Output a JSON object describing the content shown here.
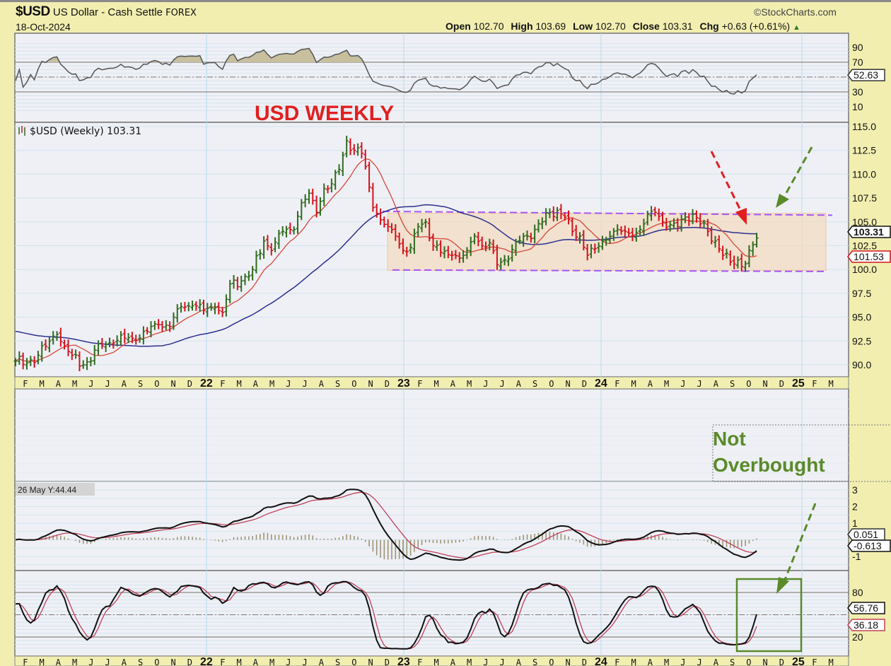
{
  "header": {
    "symbol": "$USD",
    "name": "US Dollar - Cash Settle",
    "exchange": "FOREX",
    "date": "18-Oct-2024",
    "brand": "©StockCharts.com",
    "open_label": "Open",
    "open": "102.70",
    "high_label": "High",
    "high": "103.69",
    "low_label": "Low",
    "low": "102.70",
    "close_label": "Close",
    "close": "103.31",
    "chg_label": "Chg",
    "chg": "+0.63 (+0.61%)",
    "up_icon": "triangle-up-icon"
  },
  "annotations": {
    "title": "USD WEEKLY",
    "not_overbought_1": "Not",
    "not_overbought_2": "Overbought",
    "cursor_readout": "26 May Y:44.44"
  },
  "colors": {
    "up_bar": "#2f6b1f",
    "down_bar": "#d4121e",
    "ma_short": "#d9463a",
    "ma_long": "#2d2f8f",
    "range_box": "#f2dcc0",
    "range_line": "#a855f7",
    "green_annot": "#5a8a2a",
    "red_annot": "#e02020"
  },
  "chart_data": [
    {
      "type": "line",
      "title": "RSI",
      "yticks": [
        "90",
        "70",
        "50",
        "30",
        "10"
      ],
      "ylim": [
        0,
        100
      ],
      "last_value": "52.63"
    },
    {
      "type": "bar",
      "subtype": "ohlc",
      "title": "$USD (Weekly) 103.31",
      "frequency": "weekly",
      "ylim": [
        89,
        115.5
      ],
      "yticks": [
        "115.0",
        "112.5",
        "110.0",
        "107.5",
        "105.0",
        "102.5",
        "100.0",
        "97.5",
        "95.0",
        "92.5",
        "90.0"
      ],
      "close_keypoints": {
        "week": [
          0,
          3,
          6,
          9,
          11,
          13,
          15,
          18,
          20,
          22,
          26,
          29,
          32,
          35,
          38,
          41,
          44,
          47,
          50,
          53,
          55,
          57,
          60,
          63,
          66,
          68,
          71,
          74,
          76,
          78,
          80,
          82,
          84,
          86,
          88,
          90,
          92,
          93,
          95,
          97,
          99,
          101,
          103,
          105,
          107,
          109,
          111,
          113,
          116,
          118,
          120,
          122,
          124,
          126,
          128,
          130,
          132,
          134,
          136,
          138,
          140,
          142,
          144,
          146,
          148,
          150,
          152,
          154,
          156,
          158,
          160,
          162,
          164,
          166,
          168,
          170,
          172,
          174,
          176,
          178,
          180,
          182,
          184,
          186,
          188,
          190,
          192,
          193,
          194,
          195,
          196,
          197
        ],
        "close": [
          90.4,
          90.2,
          91.0,
          92.5,
          93.2,
          92.0,
          91.0,
          90.0,
          90.4,
          92.2,
          92.3,
          92.8,
          92.6,
          93.5,
          94.2,
          94.0,
          96.1,
          96.2,
          95.7,
          96.0,
          95.5,
          98.5,
          98.8,
          100.0,
          103.0,
          102.0,
          104.0,
          104.2,
          107.0,
          108.0,
          106.0,
          108.5,
          109.0,
          110.5,
          113.5,
          112.5,
          112.2,
          110.8,
          106.5,
          105.2,
          104.5,
          103.5,
          102.0,
          102.3,
          104.5,
          105.0,
          102.5,
          101.8,
          101.5,
          101.2,
          102.0,
          103.5,
          102.5,
          102.8,
          100.5,
          101.0,
          102.1,
          103.0,
          103.5,
          104.2,
          105.0,
          106.0,
          106.2,
          105.5,
          104.0,
          103.5,
          101.5,
          102.2,
          103.0,
          103.5,
          104.2,
          104.0,
          103.5,
          104.2,
          105.8,
          106.0,
          105.0,
          104.7,
          104.5,
          105.5,
          105.8,
          104.8,
          104.0,
          103.0,
          101.5,
          100.8,
          101.0,
          100.3,
          100.6,
          102.0,
          102.6,
          103.31
        ]
      },
      "moving_averages": [
        {
          "name": "short MA",
          "value": "101.53"
        },
        {
          "name": "long MA"
        }
      ],
      "trading_range": {
        "upper": 105.9,
        "lower": 99.9
      },
      "last_value": "103.31"
    },
    {
      "type": "line",
      "title": "MACD",
      "yticks": [
        "3",
        "2",
        "1",
        "-1"
      ],
      "series": [
        {
          "name": "MACD",
          "last_value": "0.051"
        },
        {
          "name": "Signal",
          "last_value": "-0.613"
        },
        {
          "name": "Histogram"
        }
      ]
    },
    {
      "type": "line",
      "title": "Slow Stochastic",
      "yticks": [
        "80",
        "50",
        "20"
      ],
      "ylim": [
        0,
        100
      ],
      "series": [
        {
          "name": "%K",
          "last_value": "56.76"
        },
        {
          "name": "%D",
          "last_value": "36.18"
        }
      ]
    }
  ],
  "xaxis": {
    "months": [
      "F",
      "M",
      "A",
      "M",
      "J",
      "J",
      "A",
      "S",
      "O",
      "N",
      "D",
      "22",
      "F",
      "M",
      "A",
      "M",
      "J",
      "J",
      "A",
      "S",
      "O",
      "N",
      "D",
      "23",
      "F",
      "M",
      "A",
      "M",
      "J",
      "J",
      "A",
      "S",
      "O",
      "N",
      "D",
      "24",
      "F",
      "M",
      "A",
      "M",
      "J",
      "J",
      "A",
      "S",
      "O",
      "N",
      "D",
      "25",
      "F",
      "M"
    ]
  }
}
